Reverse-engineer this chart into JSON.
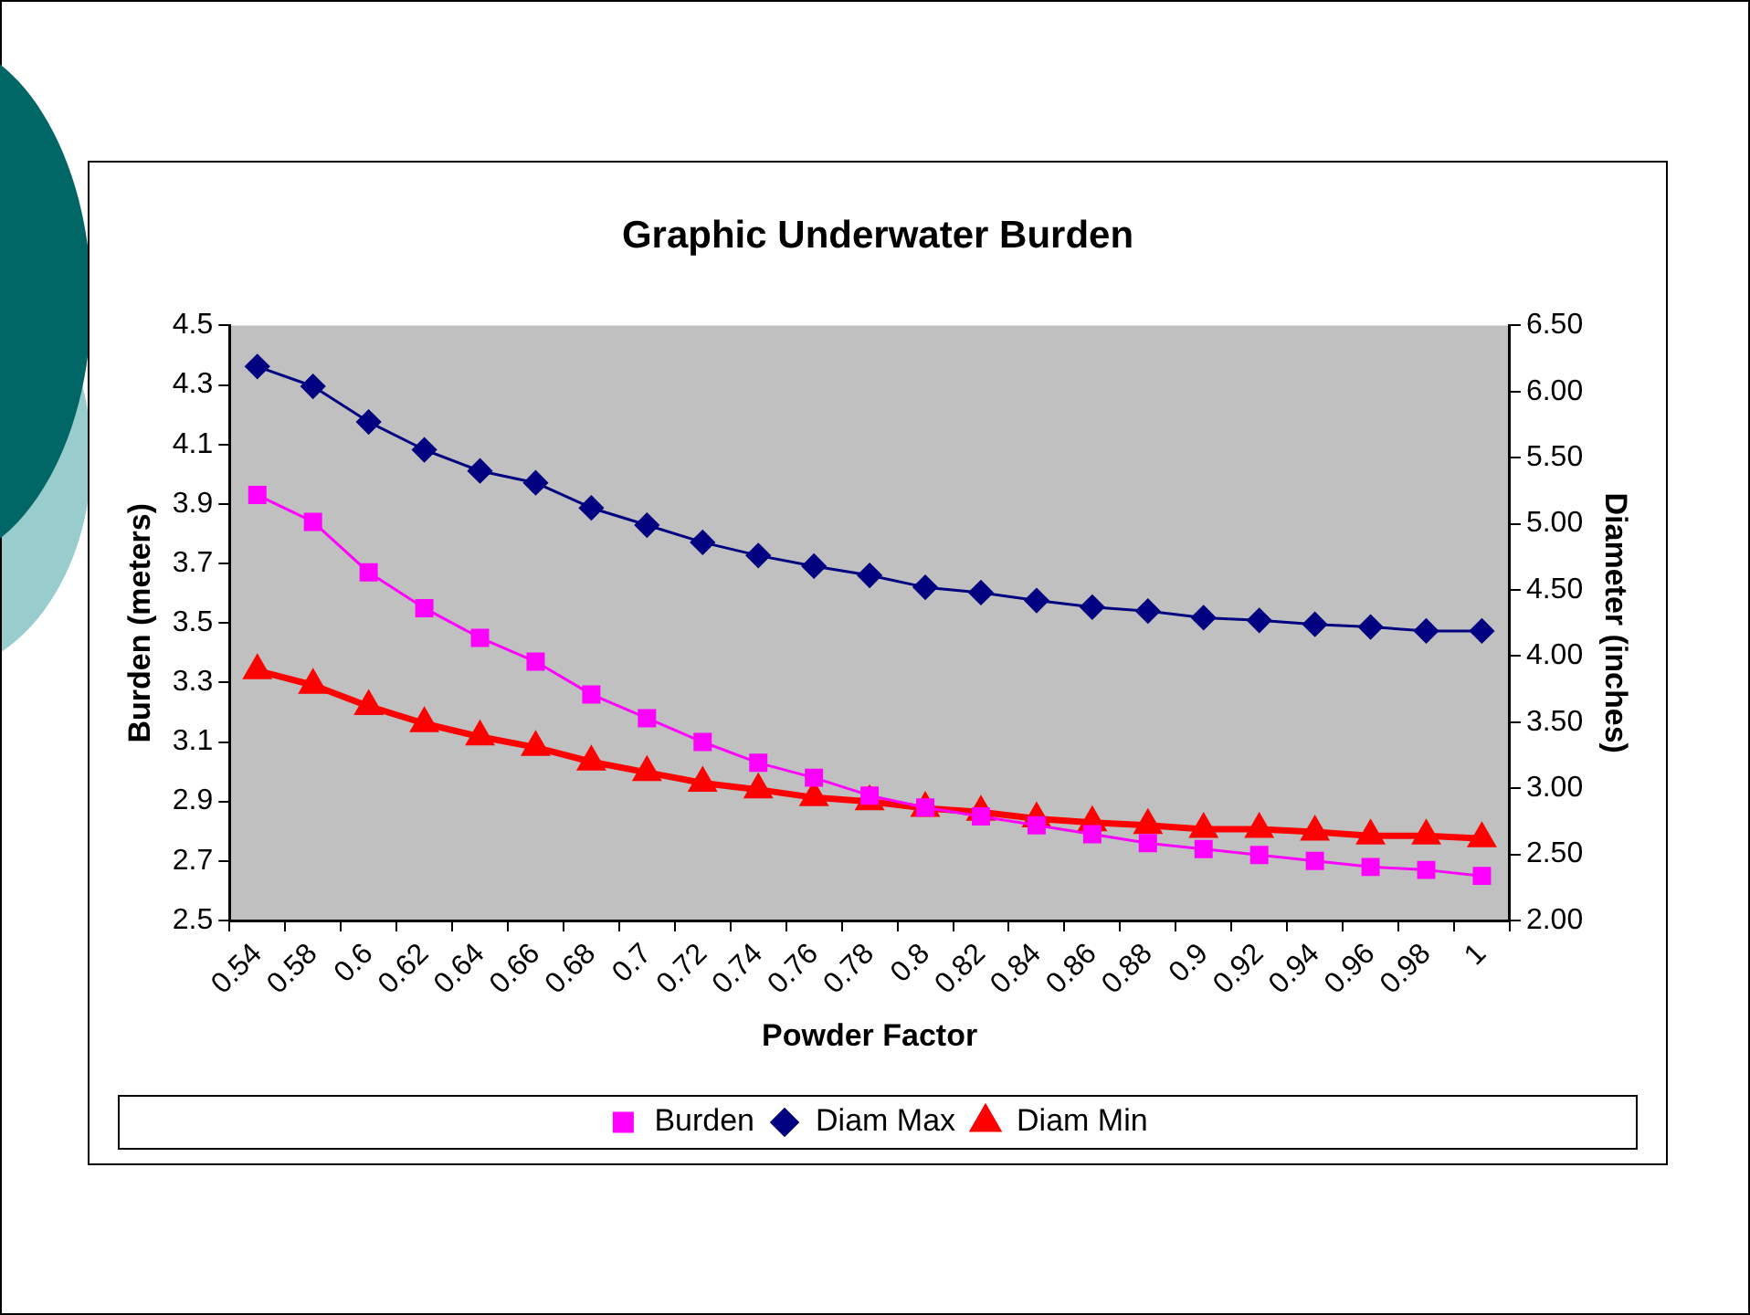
{
  "chart_data": {
    "type": "line",
    "title": "Graphic Underwater Burden",
    "xlabel": "Powder Factor",
    "ylabel": "Burden (meters)",
    "y2label": "Diameter (inches)",
    "categories": [
      "0.54",
      "0.58",
      "0.6",
      "0.62",
      "0.64",
      "0.66",
      "0.68",
      "0.7",
      "0.72",
      "0.74",
      "0.76",
      "0.78",
      "0.8",
      "0.82",
      "0.84",
      "0.86",
      "0.88",
      "0.9",
      "0.92",
      "0.94",
      "0.96",
      "0.98",
      "1"
    ],
    "series": [
      {
        "name": "Burden",
        "color": "#ff00ff",
        "marker": "square",
        "values": [
          3.93,
          3.84,
          3.67,
          3.55,
          3.45,
          3.37,
          3.26,
          3.18,
          3.1,
          3.03,
          2.98,
          2.92,
          2.88,
          2.85,
          2.82,
          2.79,
          2.76,
          2.74,
          2.72,
          2.7,
          2.68,
          2.67,
          2.65
        ]
      },
      {
        "name": "Diam Max",
        "color": "#000080",
        "marker": "diamond",
        "axis": "y2",
        "values": [
          6.19,
          6.04,
          5.77,
          5.56,
          5.4,
          5.31,
          5.12,
          4.99,
          4.86,
          4.76,
          4.68,
          4.61,
          4.52,
          4.48,
          4.42,
          4.37,
          4.34,
          4.29,
          4.27,
          4.24,
          4.22,
          4.19,
          4.19
        ]
      },
      {
        "name": "Diam Min",
        "color": "#ff0000",
        "marker": "triangle",
        "axis": "y2",
        "values": [
          3.89,
          3.78,
          3.62,
          3.49,
          3.39,
          3.31,
          3.2,
          3.12,
          3.04,
          2.99,
          2.93,
          2.9,
          2.85,
          2.82,
          2.77,
          2.74,
          2.72,
          2.69,
          2.69,
          2.67,
          2.64,
          2.64,
          2.62
        ]
      }
    ],
    "ylim": [
      2.5,
      4.5
    ],
    "yticks": [
      2.5,
      2.7,
      2.9,
      3.1,
      3.3,
      3.5,
      3.7,
      3.9,
      4.1,
      4.3,
      4.5
    ],
    "y2lim": [
      2,
      6.5
    ],
    "y2ticks": [
      {
        "value": 2,
        "label": "2.00"
      },
      {
        "value": 2.5,
        "label": "2.50"
      },
      {
        "value": 3,
        "label": "3.00"
      },
      {
        "value": 3.5,
        "label": "3.50"
      },
      {
        "value": 4,
        "label": "4.00"
      },
      {
        "value": 4.5,
        "label": "4.50"
      },
      {
        "value": 5,
        "label": "5.00"
      },
      {
        "value": 5.5,
        "label": "5.50"
      },
      {
        "value": 6,
        "label": "6.00"
      },
      {
        "value": 6.5,
        "label": "6.50"
      }
    ],
    "grid": false,
    "legend": "bottom"
  }
}
